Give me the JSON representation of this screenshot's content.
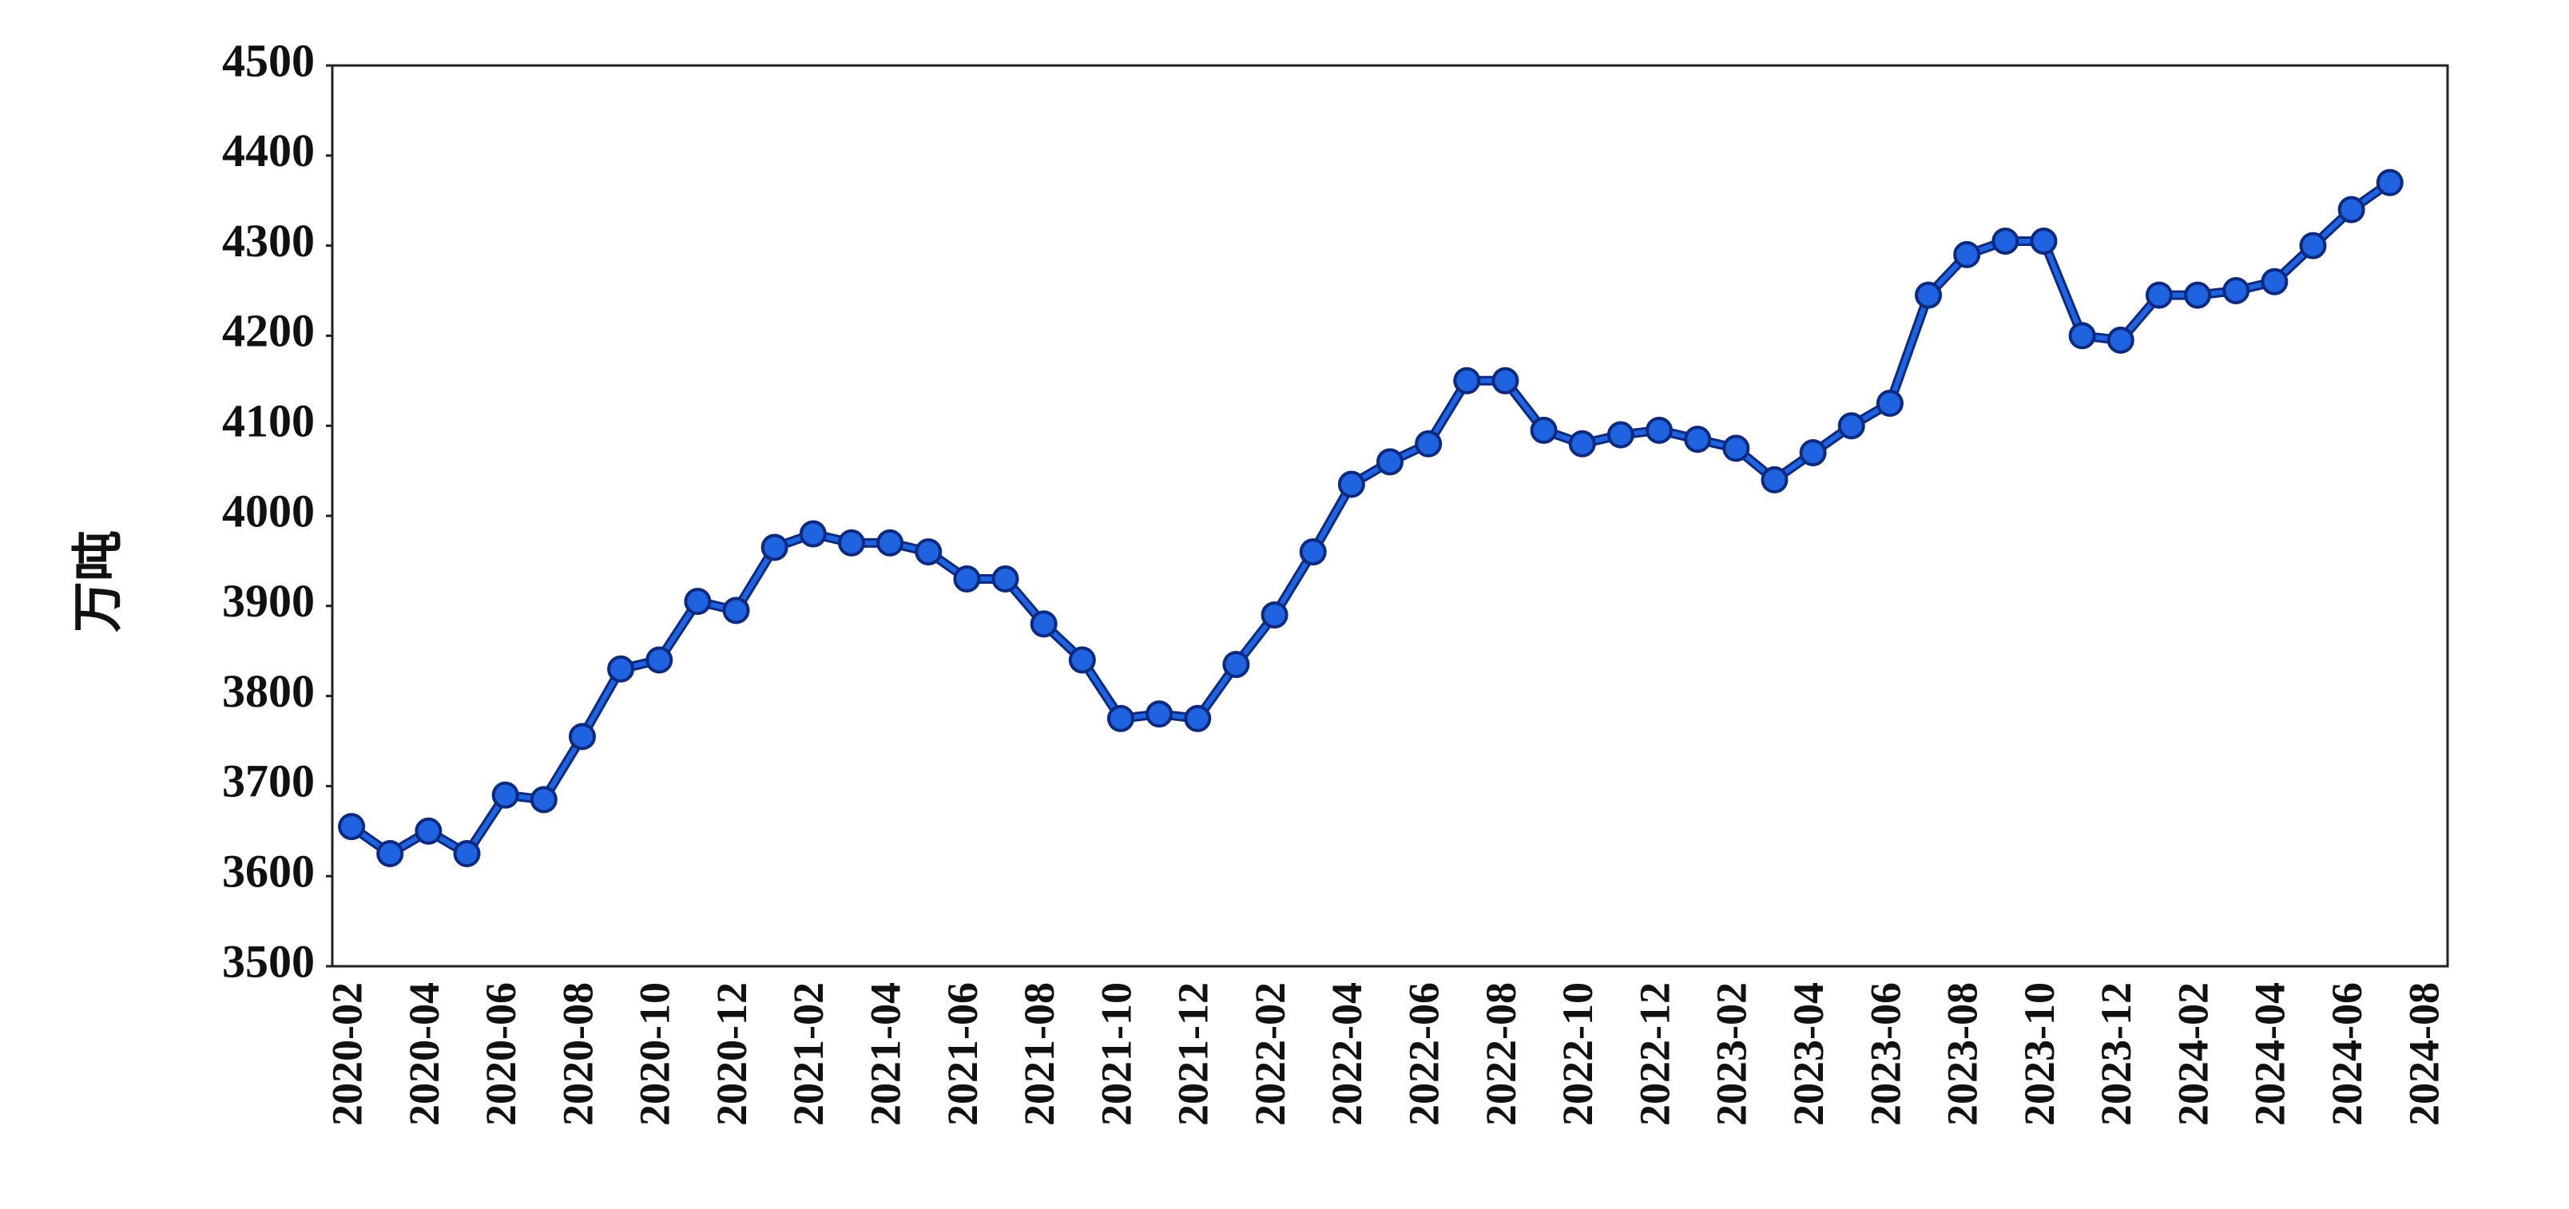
{
  "chart_data": {
    "type": "line",
    "y_label": "万吨",
    "categories": [
      "2020-02",
      null,
      "2020-04",
      null,
      "2020-06",
      null,
      "2020-08",
      null,
      "2020-10",
      null,
      "2020-12",
      null,
      "2021-02",
      null,
      "2021-04",
      null,
      "2021-06",
      null,
      "2021-08",
      null,
      "2021-10",
      null,
      "2021-12",
      null,
      "2022-02",
      null,
      "2022-04",
      null,
      "2022-06",
      null,
      "2022-08",
      null,
      "2022-10",
      null,
      "2022-12",
      null,
      "2023-02",
      null,
      "2023-04",
      null,
      "2023-06",
      null,
      "2023-08",
      null,
      "2023-10",
      null,
      "2023-12",
      null,
      "2024-02",
      null,
      "2024-04",
      null,
      "2024-06",
      null,
      "2024-08"
    ],
    "series": [
      {
        "color": "#1f63e0",
        "values": [
          3655,
          3625,
          3650,
          3625,
          3690,
          3685,
          3755,
          3830,
          3840,
          3905,
          3895,
          3965,
          3980,
          3970,
          3970,
          3960,
          3930,
          3930,
          3880,
          3840,
          3775,
          3780,
          3775,
          3835,
          3890,
          3960,
          4035,
          4060,
          4080,
          4150,
          4150,
          4095,
          4080,
          4090,
          4095,
          4085,
          4075,
          4040,
          4070,
          4100,
          4125,
          4245,
          4290,
          4305,
          4305,
          4200,
          4195,
          4245,
          4245,
          4250,
          4260,
          4300,
          4340,
          4370,
          null
        ]
      }
    ],
    "ylim": [
      3500,
      4500
    ],
    "yticks": [
      3500,
      3600,
      3700,
      3800,
      3900,
      4000,
      4100,
      4200,
      4300,
      4400,
      4500
    ],
    "grid": false
  }
}
